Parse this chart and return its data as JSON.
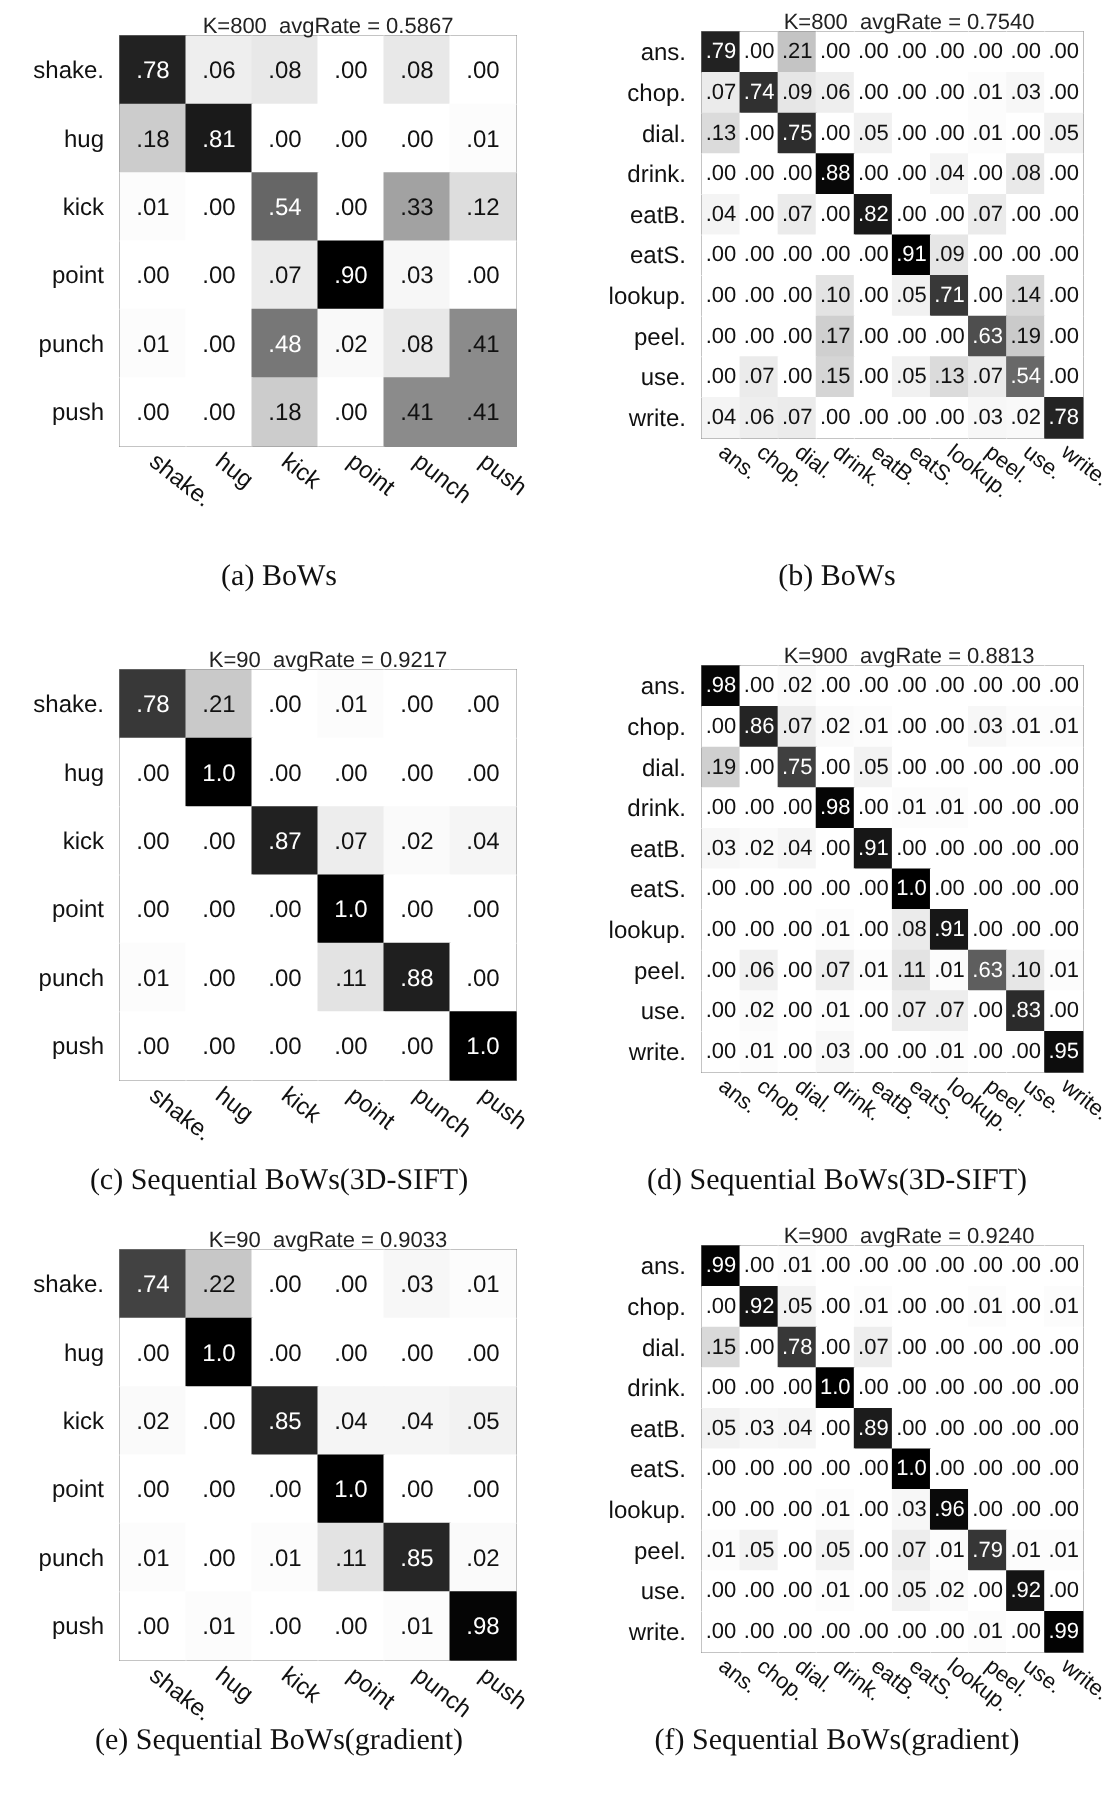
{
  "chart_data": [
    {
      "type": "heatmap",
      "title": "K=800  avgRate = 0.5867",
      "annotations": [
        "(a) BoWs"
      ],
      "categories": [
        "shake.",
        "hug",
        "kick",
        "point",
        "punch",
        "push"
      ],
      "y_categories": [
        "shake.",
        "hug",
        "kick",
        "point",
        "punch",
        "push"
      ],
      "cells": [
        [
          0.78,
          0.06,
          0.08,
          0.0,
          0.08,
          0.0
        ],
        [
          0.18,
          0.81,
          0.0,
          0.0,
          0.0,
          0.01
        ],
        [
          0.01,
          0.0,
          0.54,
          0.0,
          0.33,
          0.12
        ],
        [
          0.0,
          0.0,
          0.07,
          0.9,
          0.03,
          0.0
        ],
        [
          0.01,
          0.0,
          0.48,
          0.02,
          0.08,
          0.41
        ],
        [
          0.0,
          0.0,
          0.18,
          0.0,
          0.41,
          0.41
        ]
      ],
      "cell_labels": [
        [
          ".78",
          ".06",
          ".08",
          ".00",
          ".08",
          ".00"
        ],
        [
          ".18",
          ".81",
          ".00",
          ".00",
          ".00",
          ".01"
        ],
        [
          ".01",
          ".00",
          ".54",
          ".00",
          ".33",
          ".12"
        ],
        [
          ".00",
          ".00",
          ".07",
          ".90",
          ".03",
          ".00"
        ],
        [
          ".01",
          ".00",
          ".48",
          ".02",
          ".08",
          ".41"
        ],
        [
          ".00",
          ".00",
          ".18",
          ".00",
          ".41",
          ".41"
        ]
      ]
    },
    {
      "type": "heatmap",
      "title": "K=800  avgRate = 0.7540",
      "annotations": [
        "(b) BoWs"
      ],
      "categories": [
        "ans.",
        "chop.",
        "dial.",
        "drink.",
        "eatB.",
        "eatS.",
        "lookup.",
        "peel.",
        "use.",
        "write."
      ],
      "y_categories": [
        "ans.",
        "chop.",
        "dial.",
        "drink.",
        "eatB.",
        "eatS.",
        "lookup.",
        "peel.",
        "use.",
        "write."
      ],
      "cells": [
        [
          0.79,
          0.0,
          0.21,
          0.0,
          0.0,
          0.0,
          0.0,
          0.0,
          0.0,
          0.0
        ],
        [
          0.07,
          0.74,
          0.09,
          0.06,
          0.0,
          0.0,
          0.0,
          0.01,
          0.03,
          0.0
        ],
        [
          0.13,
          0.0,
          0.75,
          0.0,
          0.05,
          0.0,
          0.0,
          0.01,
          0.0,
          0.05
        ],
        [
          0.0,
          0.0,
          0.0,
          0.88,
          0.0,
          0.0,
          0.04,
          0.0,
          0.08,
          0.0
        ],
        [
          0.04,
          0.0,
          0.07,
          0.0,
          0.82,
          0.0,
          0.0,
          0.07,
          0.0,
          0.0
        ],
        [
          0.0,
          0.0,
          0.0,
          0.0,
          0.0,
          0.91,
          0.09,
          0.0,
          0.0,
          0.0
        ],
        [
          0.0,
          0.0,
          0.0,
          0.1,
          0.0,
          0.05,
          0.71,
          0.0,
          0.14,
          0.0
        ],
        [
          0.0,
          0.0,
          0.0,
          0.17,
          0.0,
          0.0,
          0.0,
          0.63,
          0.19,
          0.0
        ],
        [
          0.0,
          0.07,
          0.0,
          0.15,
          0.0,
          0.05,
          0.13,
          0.07,
          0.54,
          0.0
        ],
        [
          0.04,
          0.06,
          0.07,
          0.0,
          0.0,
          0.0,
          0.0,
          0.03,
          0.02,
          0.78
        ]
      ],
      "cell_labels": [
        [
          ".79",
          ".00",
          ".21",
          ".00",
          ".00",
          ".00",
          ".00",
          ".00",
          ".00",
          ".00"
        ],
        [
          ".07",
          ".74",
          ".09",
          ".06",
          ".00",
          ".00",
          ".00",
          ".01",
          ".03",
          ".00"
        ],
        [
          ".13",
          ".00",
          ".75",
          ".00",
          ".05",
          ".00",
          ".00",
          ".01",
          ".00",
          ".05"
        ],
        [
          ".00",
          ".00",
          ".00",
          ".88",
          ".00",
          ".00",
          ".04",
          ".00",
          ".08",
          ".00"
        ],
        [
          ".04",
          ".00",
          ".07",
          ".00",
          ".82",
          ".00",
          ".00",
          ".07",
          ".00",
          ".00"
        ],
        [
          ".00",
          ".00",
          ".00",
          ".00",
          ".00",
          ".91",
          ".09",
          ".00",
          ".00",
          ".00"
        ],
        [
          ".00",
          ".00",
          ".00",
          ".10",
          ".00",
          ".05",
          ".71",
          ".00",
          ".14",
          ".00"
        ],
        [
          ".00",
          ".00",
          ".00",
          ".17",
          ".00",
          ".00",
          ".00",
          ".63",
          ".19",
          ".00"
        ],
        [
          ".00",
          ".07",
          ".00",
          ".15",
          ".00",
          ".05",
          ".13",
          ".07",
          ".54",
          ".00"
        ],
        [
          ".04",
          ".06",
          ".07",
          ".00",
          ".00",
          ".00",
          ".00",
          ".03",
          ".02",
          ".78"
        ]
      ]
    },
    {
      "type": "heatmap",
      "title": "K=90  avgRate = 0.9217",
      "annotations": [
        "(c) Sequential BoWs(3D-SIFT)"
      ],
      "categories": [
        "shake.",
        "hug",
        "kick",
        "point",
        "punch",
        "push"
      ],
      "y_categories": [
        "shake.",
        "hug",
        "kick",
        "point",
        "punch",
        "push"
      ],
      "cells": [
        [
          0.78,
          0.21,
          0.0,
          0.01,
          0.0,
          0.0
        ],
        [
          0.0,
          1.0,
          0.0,
          0.0,
          0.0,
          0.0
        ],
        [
          0.0,
          0.0,
          0.87,
          0.07,
          0.02,
          0.04
        ],
        [
          0.0,
          0.0,
          0.0,
          1.0,
          0.0,
          0.0
        ],
        [
          0.01,
          0.0,
          0.0,
          0.11,
          0.88,
          0.0
        ],
        [
          0.0,
          0.0,
          0.0,
          0.0,
          0.0,
          1.0
        ]
      ],
      "cell_labels": [
        [
          ".78",
          ".21",
          ".00",
          ".01",
          ".00",
          ".00"
        ],
        [
          ".00",
          "1.0",
          ".00",
          ".00",
          ".00",
          ".00"
        ],
        [
          ".00",
          ".00",
          ".87",
          ".07",
          ".02",
          ".04"
        ],
        [
          ".00",
          ".00",
          ".00",
          "1.0",
          ".00",
          ".00"
        ],
        [
          ".01",
          ".00",
          ".00",
          ".11",
          ".88",
          ".00"
        ],
        [
          ".00",
          ".00",
          ".00",
          ".00",
          ".00",
          "1.0"
        ]
      ]
    },
    {
      "type": "heatmap",
      "title": "K=900  avgRate = 0.8813",
      "annotations": [
        "(d) Sequential BoWs(3D-SIFT)"
      ],
      "categories": [
        "ans.",
        "chop.",
        "dial.",
        "drink.",
        "eatB.",
        "eatS.",
        "lookup.",
        "peel.",
        "use.",
        "write."
      ],
      "y_categories": [
        "ans.",
        "chop.",
        "dial.",
        "drink.",
        "eatB.",
        "eatS.",
        "lookup.",
        "peel.",
        "use.",
        "write."
      ],
      "cells": [
        [
          0.98,
          0.0,
          0.02,
          0.0,
          0.0,
          0.0,
          0.0,
          0.0,
          0.0,
          0.0
        ],
        [
          0.0,
          0.86,
          0.07,
          0.02,
          0.01,
          0.0,
          0.0,
          0.03,
          0.01,
          0.01
        ],
        [
          0.19,
          0.0,
          0.75,
          0.0,
          0.05,
          0.0,
          0.0,
          0.0,
          0.0,
          0.0
        ],
        [
          0.0,
          0.0,
          0.0,
          0.98,
          0.0,
          0.01,
          0.01,
          0.0,
          0.0,
          0.0
        ],
        [
          0.03,
          0.02,
          0.04,
          0.0,
          0.91,
          0.0,
          0.0,
          0.0,
          0.0,
          0.0
        ],
        [
          0.0,
          0.0,
          0.0,
          0.0,
          0.0,
          1.0,
          0.0,
          0.0,
          0.0,
          0.0
        ],
        [
          0.0,
          0.0,
          0.0,
          0.01,
          0.0,
          0.08,
          0.91,
          0.0,
          0.0,
          0.0
        ],
        [
          0.0,
          0.06,
          0.0,
          0.07,
          0.01,
          0.11,
          0.01,
          0.63,
          0.1,
          0.01
        ],
        [
          0.0,
          0.02,
          0.0,
          0.01,
          0.0,
          0.07,
          0.07,
          0.0,
          0.83,
          0.0
        ],
        [
          0.0,
          0.01,
          0.0,
          0.03,
          0.0,
          0.0,
          0.01,
          0.0,
          0.0,
          0.95
        ]
      ],
      "cell_labels": [
        [
          ".98",
          ".00",
          ".02",
          ".00",
          ".00",
          ".00",
          ".00",
          ".00",
          ".00",
          ".00"
        ],
        [
          ".00",
          ".86",
          ".07",
          ".02",
          ".01",
          ".00",
          ".00",
          ".03",
          ".01",
          ".01"
        ],
        [
          ".19",
          ".00",
          ".75",
          ".00",
          ".05",
          ".00",
          ".00",
          ".00",
          ".00",
          ".00"
        ],
        [
          ".00",
          ".00",
          ".00",
          ".98",
          ".00",
          ".01",
          ".01",
          ".00",
          ".00",
          ".00"
        ],
        [
          ".03",
          ".02",
          ".04",
          ".00",
          ".91",
          ".00",
          ".00",
          ".00",
          ".00",
          ".00"
        ],
        [
          ".00",
          ".00",
          ".00",
          ".00",
          ".00",
          "1.0",
          ".00",
          ".00",
          ".00",
          ".00"
        ],
        [
          ".00",
          ".00",
          ".00",
          ".01",
          ".00",
          ".08",
          ".91",
          ".00",
          ".00",
          ".00"
        ],
        [
          ".00",
          ".06",
          ".00",
          ".07",
          ".01",
          ".11",
          ".01",
          ".63",
          ".10",
          ".01"
        ],
        [
          ".00",
          ".02",
          ".00",
          ".01",
          ".00",
          ".07",
          ".07",
          ".00",
          ".83",
          ".00"
        ],
        [
          ".00",
          ".01",
          ".00",
          ".03",
          ".00",
          ".00",
          ".01",
          ".00",
          ".00",
          ".95"
        ]
      ]
    },
    {
      "type": "heatmap",
      "title": "K=90  avgRate = 0.9033",
      "annotations": [
        "(e) Sequential BoWs(gradient)"
      ],
      "categories": [
        "shake.",
        "hug",
        "kick",
        "point",
        "punch",
        "push"
      ],
      "y_categories": [
        "shake.",
        "hug",
        "kick",
        "point",
        "punch",
        "push"
      ],
      "cells": [
        [
          0.74,
          0.22,
          0.0,
          0.0,
          0.03,
          0.01
        ],
        [
          0.0,
          1.0,
          0.0,
          0.0,
          0.0,
          0.0
        ],
        [
          0.02,
          0.0,
          0.85,
          0.04,
          0.04,
          0.05
        ],
        [
          0.0,
          0.0,
          0.0,
          1.0,
          0.0,
          0.0
        ],
        [
          0.01,
          0.0,
          0.01,
          0.11,
          0.85,
          0.02
        ],
        [
          0.0,
          0.01,
          0.0,
          0.0,
          0.01,
          0.98
        ]
      ],
      "cell_labels": [
        [
          ".74",
          ".22",
          ".00",
          ".00",
          ".03",
          ".01"
        ],
        [
          ".00",
          "1.0",
          ".00",
          ".00",
          ".00",
          ".00"
        ],
        [
          ".02",
          ".00",
          ".85",
          ".04",
          ".04",
          ".05"
        ],
        [
          ".00",
          ".00",
          ".00",
          "1.0",
          ".00",
          ".00"
        ],
        [
          ".01",
          ".00",
          ".01",
          ".11",
          ".85",
          ".02"
        ],
        [
          ".00",
          ".01",
          ".00",
          ".00",
          ".01",
          ".98"
        ]
      ]
    },
    {
      "type": "heatmap",
      "title": "K=900  avgRate = 0.9240",
      "annotations": [
        "(f) Sequential BoWs(gradient)"
      ],
      "categories": [
        "ans.",
        "chop.",
        "dial.",
        "drink.",
        "eatB.",
        "eatS.",
        "lookup.",
        "peel.",
        "use.",
        "write."
      ],
      "y_categories": [
        "ans.",
        "chop.",
        "dial.",
        "drink.",
        "eatB.",
        "eatS.",
        "lookup.",
        "peel.",
        "use.",
        "write."
      ],
      "cells": [
        [
          0.99,
          0.0,
          0.01,
          0.0,
          0.0,
          0.0,
          0.0,
          0.0,
          0.0,
          0.0
        ],
        [
          0.0,
          0.92,
          0.05,
          0.0,
          0.01,
          0.0,
          0.0,
          0.01,
          0.0,
          0.01
        ],
        [
          0.15,
          0.0,
          0.78,
          0.0,
          0.07,
          0.0,
          0.0,
          0.0,
          0.0,
          0.0
        ],
        [
          0.0,
          0.0,
          0.0,
          1.0,
          0.0,
          0.0,
          0.0,
          0.0,
          0.0,
          0.0
        ],
        [
          0.05,
          0.03,
          0.04,
          0.0,
          0.89,
          0.0,
          0.0,
          0.0,
          0.0,
          0.0
        ],
        [
          0.0,
          0.0,
          0.0,
          0.0,
          0.0,
          1.0,
          0.0,
          0.0,
          0.0,
          0.0
        ],
        [
          0.0,
          0.0,
          0.0,
          0.01,
          0.0,
          0.03,
          0.96,
          0.0,
          0.0,
          0.0
        ],
        [
          0.01,
          0.05,
          0.0,
          0.05,
          0.0,
          0.07,
          0.01,
          0.79,
          0.01,
          0.01
        ],
        [
          0.0,
          0.0,
          0.0,
          0.01,
          0.0,
          0.05,
          0.02,
          0.0,
          0.92,
          0.0
        ],
        [
          0.0,
          0.0,
          0.0,
          0.0,
          0.0,
          0.0,
          0.0,
          0.01,
          0.0,
          0.99
        ]
      ],
      "cell_labels": [
        [
          ".99",
          ".00",
          ".01",
          ".00",
          ".00",
          ".00",
          ".00",
          ".00",
          ".00",
          ".00"
        ],
        [
          ".00",
          ".92",
          ".05",
          ".00",
          ".01",
          ".00",
          ".00",
          ".01",
          ".00",
          ".01"
        ],
        [
          ".15",
          ".00",
          ".78",
          ".00",
          ".07",
          ".00",
          ".00",
          ".00",
          ".00",
          ".00"
        ],
        [
          ".00",
          ".00",
          ".00",
          "1.0",
          ".00",
          ".00",
          ".00",
          ".00",
          ".00",
          ".00"
        ],
        [
          ".05",
          ".03",
          ".04",
          ".00",
          ".89",
          ".00",
          ".00",
          ".00",
          ".00",
          ".00"
        ],
        [
          ".00",
          ".00",
          ".00",
          ".00",
          ".00",
          "1.0",
          ".00",
          ".00",
          ".00",
          ".00"
        ],
        [
          ".00",
          ".00",
          ".00",
          ".01",
          ".00",
          ".03",
          ".96",
          ".00",
          ".00",
          ".00"
        ],
        [
          ".01",
          ".05",
          ".00",
          ".05",
          ".00",
          ".07",
          ".01",
          ".79",
          ".01",
          ".01"
        ],
        [
          ".00",
          ".00",
          ".00",
          ".01",
          ".00",
          ".05",
          ".02",
          ".00",
          ".92",
          ".00"
        ],
        [
          ".00",
          ".00",
          ".00",
          ".00",
          ".00",
          ".00",
          ".00",
          ".01",
          ".00",
          ".99"
        ]
      ]
    }
  ]
}
